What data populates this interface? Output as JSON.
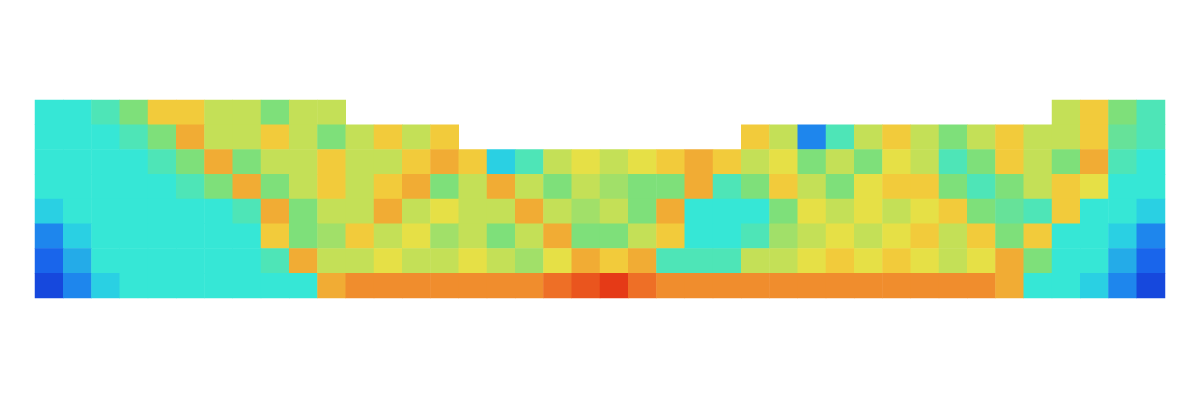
{
  "chart_data": {
    "type": "heatmap",
    "tick_labels": false,
    "zlim": [
      0,
      10
    ],
    "cells": [
      [
        3.5,
        3.5,
        4,
        5,
        7,
        7,
        6,
        6,
        5,
        6,
        6,
        null,
        null,
        null,
        null,
        null,
        null,
        null,
        null,
        null,
        null,
        null,
        null,
        null,
        null,
        null,
        null,
        null,
        null,
        null,
        null,
        null,
        null,
        null,
        null,
        null,
        6,
        7,
        5,
        4
      ],
      [
        3.5,
        3.5,
        3.5,
        4,
        5,
        7.5,
        6,
        6,
        7,
        6,
        5,
        6,
        7,
        6,
        7,
        null,
        null,
        null,
        null,
        null,
        null,
        null,
        null,
        null,
        null,
        7,
        6,
        2,
        4,
        6,
        7,
        6,
        5,
        6,
        7,
        6,
        6,
        7,
        4.5,
        4
      ],
      [
        3.5,
        3.5,
        3.5,
        3.5,
        4,
        5,
        7.5,
        5,
        6,
        6,
        7,
        6,
        6,
        7,
        7.5,
        7,
        3,
        4,
        6,
        6.5,
        6,
        6.5,
        7,
        7.5,
        7,
        6,
        6.5,
        5,
        6,
        5,
        6.5,
        6,
        4,
        5,
        7,
        6,
        5,
        7.5,
        4,
        3.5
      ],
      [
        3.5,
        3.5,
        3.5,
        3.5,
        3.5,
        4,
        5,
        7.5,
        5,
        6,
        7,
        6,
        7,
        7.5,
        5,
        6,
        7.5,
        6,
        5,
        6,
        5.5,
        5,
        5,
        7.5,
        4,
        5,
        7,
        6,
        5,
        6.5,
        7,
        7,
        5,
        4,
        5,
        6,
        7,
        6.5,
        3.5,
        3.5
      ],
      [
        3,
        3.5,
        3.5,
        3.5,
        3.5,
        3.5,
        3.5,
        4,
        7.5,
        5,
        6,
        6,
        7.5,
        6,
        6.5,
        6,
        6,
        7.5,
        6,
        5.5,
        6,
        5,
        7.5,
        3.5,
        3.5,
        3.5,
        5,
        6.5,
        6,
        6.5,
        6,
        6.5,
        7,
        5,
        4.5,
        4,
        7,
        3.5,
        3.5,
        3
      ],
      [
        2,
        3,
        3.5,
        3.5,
        3.5,
        3.5,
        3.5,
        3.5,
        7,
        5,
        5.5,
        7,
        6,
        6.5,
        5.5,
        6,
        5,
        6,
        7.5,
        5,
        5,
        6,
        7,
        3.5,
        3.5,
        4,
        5.5,
        6,
        6.5,
        6,
        6.5,
        7,
        6,
        7,
        5,
        7,
        3.5,
        3.5,
        3,
        2
      ],
      [
        1.5,
        2.5,
        3.5,
        3.5,
        3.5,
        3.5,
        3.5,
        3.5,
        4,
        7.5,
        6,
        6,
        6.5,
        6,
        6,
        6.5,
        6,
        5.5,
        6.5,
        7.5,
        7,
        7.5,
        4,
        4,
        4,
        6,
        6,
        6.5,
        7,
        6.5,
        7,
        6.5,
        6,
        6.5,
        7.5,
        5,
        3.5,
        3.5,
        2.5,
        1.5
      ],
      [
        1,
        2,
        3,
        3.5,
        3.5,
        3.5,
        3.5,
        3.5,
        3.5,
        3.5,
        7.5,
        8,
        8,
        8,
        8,
        8,
        8,
        8,
        8.5,
        9,
        9.5,
        8.5,
        8,
        8,
        8,
        8,
        8,
        8,
        8,
        8,
        8,
        8,
        8,
        8,
        7.5,
        3.5,
        3.5,
        3,
        2,
        1
      ]
    ]
  }
}
